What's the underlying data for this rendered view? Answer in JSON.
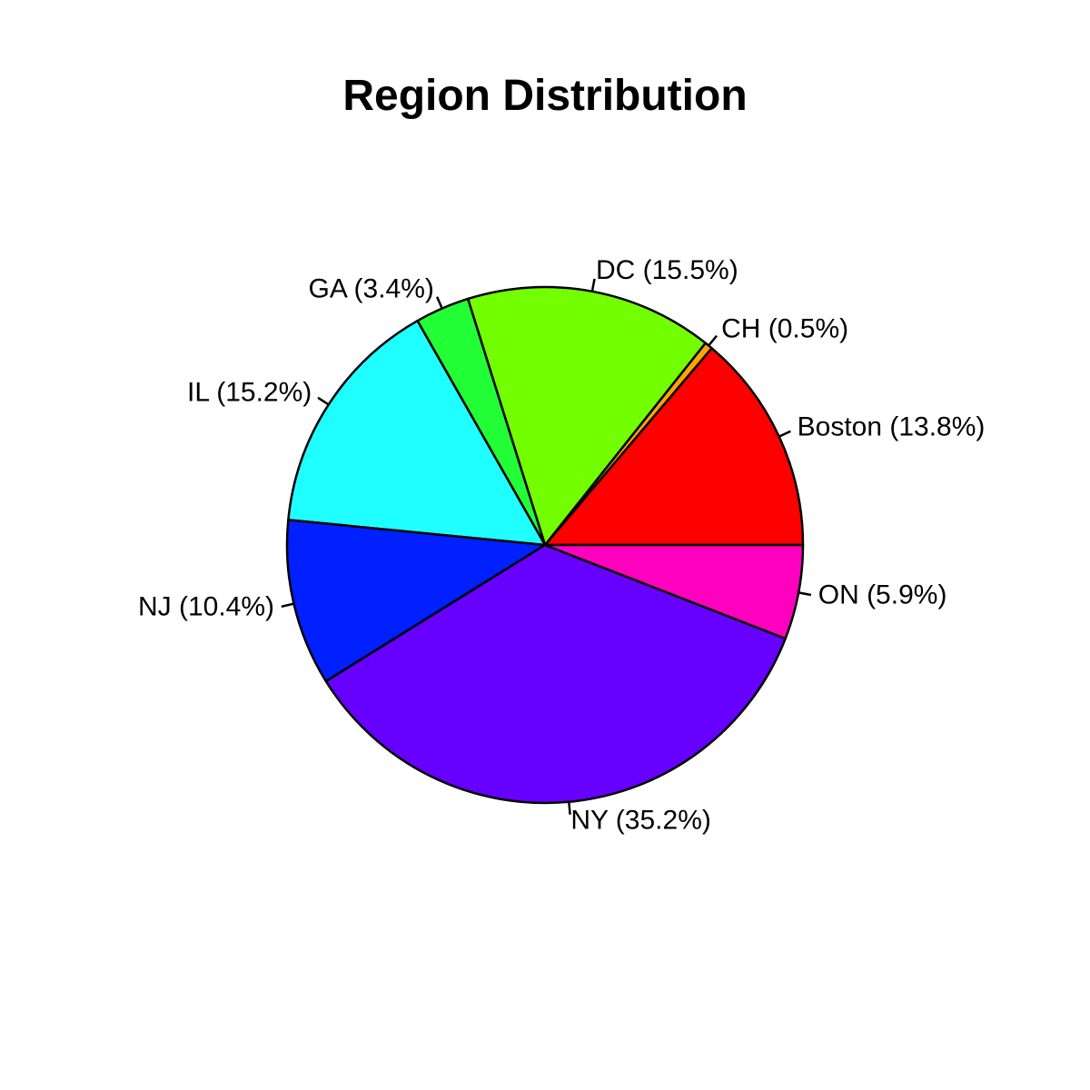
{
  "chart_data": {
    "type": "pie",
    "title": "Region Distribution",
    "slices": [
      {
        "name": "Boston",
        "label": "Boston (13.8%)",
        "value": 13.8,
        "color": "#FF0000"
      },
      {
        "name": "CH",
        "label": "CH (0.5%)",
        "value": 0.5,
        "color": "#FFA500"
      },
      {
        "name": "DC",
        "label": "DC (15.5%)",
        "value": 15.5,
        "color": "#73FF00"
      },
      {
        "name": "GA",
        "label": "GA (3.4%)",
        "value": 3.4,
        "color": "#22FF36"
      },
      {
        "name": "IL",
        "label": "IL (15.2%)",
        "value": 15.2,
        "color": "#1FFFFF"
      },
      {
        "name": "NJ",
        "label": "NJ (10.4%)",
        "value": 10.4,
        "color": "#0020FF"
      },
      {
        "name": "NY",
        "label": "NY (35.2%)",
        "value": 35.2,
        "color": "#6600FF"
      },
      {
        "name": "ON",
        "label": "ON (5.9%)",
        "value": 5.9,
        "color": "#FF00BF"
      }
    ],
    "start": "3 o'clock",
    "direction": "counterclockwise",
    "border_color": "#000000"
  }
}
